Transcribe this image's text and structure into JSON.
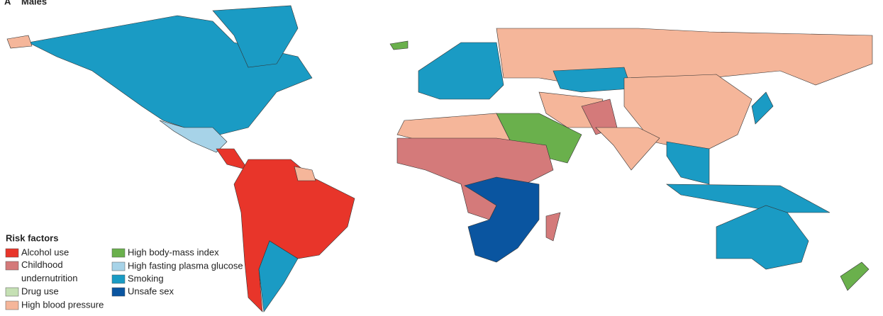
{
  "panel_label": "A",
  "title": "Males",
  "legend": {
    "title": "Risk factors",
    "items": [
      {
        "label": "Alcohol use",
        "color": "#e8352a"
      },
      {
        "label": "Childhood undernutrition",
        "color": "#d47a7a"
      },
      {
        "label": "Drug use",
        "color": "#c5e0b4"
      },
      {
        "label": "High blood pressure",
        "color": "#f5b69a"
      },
      {
        "label": "High body-mass index",
        "color": "#6ab04c"
      },
      {
        "label": "High fasting plasma glucose",
        "color": "#a7d3e8"
      },
      {
        "label": "Smoking",
        "color": "#1a9bc4"
      },
      {
        "label": "Unsafe sex",
        "color": "#0a55a0"
      }
    ]
  }
}
